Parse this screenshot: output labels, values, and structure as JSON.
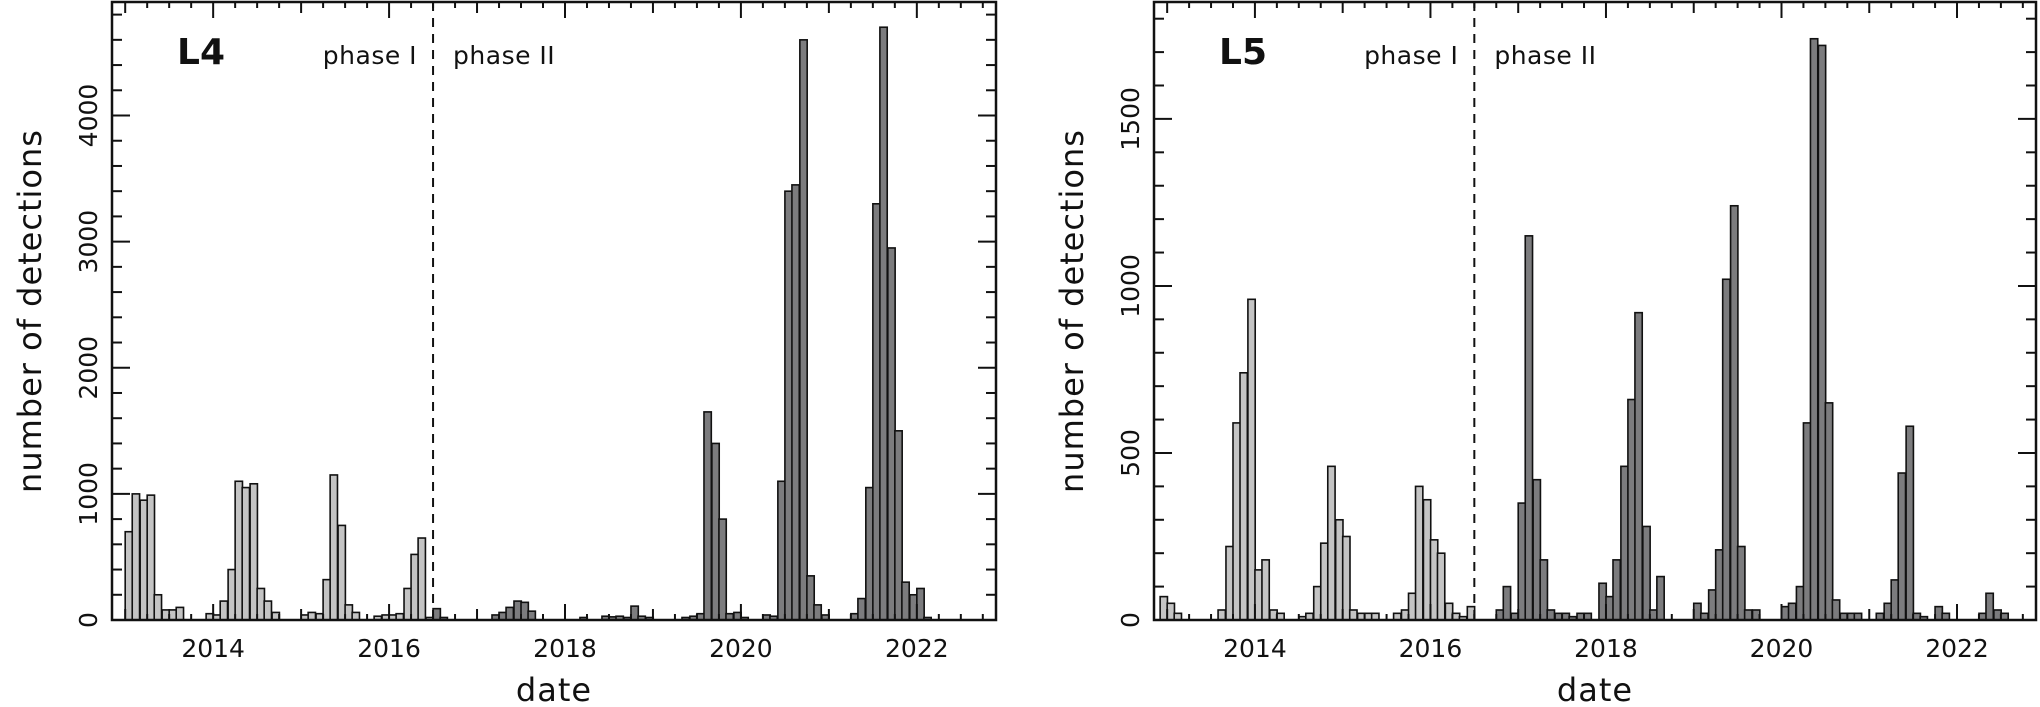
{
  "colors": {
    "phase_I": "#c4c4c4",
    "phase_II": "#7c7c7e",
    "outline": "#111111"
  },
  "chart_data": [
    {
      "type": "bar",
      "panel_label": "L4",
      "xlabel": "date",
      "ylabel": "number of detections",
      "xlim": [
        2012.85,
        2022.9
      ],
      "ylim": [
        0,
        4900
      ],
      "xticks": [
        2014,
        2016,
        2018,
        2020,
        2022
      ],
      "xtick_labels": [
        "2014",
        "2016",
        "2018",
        "2020",
        "2022"
      ],
      "yticks": [
        0,
        1000,
        2000,
        3000,
        4000
      ],
      "ytick_labels": [
        "0",
        "1000",
        "2000",
        "3000",
        "4000"
      ],
      "bin_width": 0.0833,
      "phase_boundary": 2016.5,
      "phase_labels": [
        "phase I",
        "phase II"
      ],
      "series": [
        {
          "phase": "I",
          "bins": [
            [
              2013.0,
              700
            ],
            [
              2013.08,
              1000
            ],
            [
              2013.17,
              950
            ],
            [
              2013.25,
              990
            ],
            [
              2013.33,
              200
            ],
            [
              2013.42,
              80
            ],
            [
              2013.5,
              80
            ],
            [
              2013.58,
              100
            ],
            [
              2013.92,
              50
            ],
            [
              2014.0,
              40
            ],
            [
              2014.08,
              150
            ],
            [
              2014.17,
              400
            ],
            [
              2014.25,
              1100
            ],
            [
              2014.33,
              1050
            ],
            [
              2014.42,
              1080
            ],
            [
              2014.5,
              250
            ],
            [
              2014.58,
              150
            ],
            [
              2014.67,
              60
            ],
            [
              2015.0,
              40
            ],
            [
              2015.08,
              60
            ],
            [
              2015.17,
              50
            ],
            [
              2015.25,
              320
            ],
            [
              2015.33,
              1150
            ],
            [
              2015.42,
              750
            ],
            [
              2015.5,
              120
            ],
            [
              2015.58,
              60
            ],
            [
              2015.83,
              30
            ],
            [
              2015.92,
              40
            ],
            [
              2016.0,
              40
            ],
            [
              2016.08,
              50
            ],
            [
              2016.17,
              250
            ],
            [
              2016.25,
              520
            ],
            [
              2016.33,
              650
            ],
            [
              2016.42,
              20
            ]
          ]
        },
        {
          "phase": "II",
          "bins": [
            [
              2016.5,
              90
            ],
            [
              2016.58,
              20
            ],
            [
              2017.17,
              40
            ],
            [
              2017.25,
              60
            ],
            [
              2017.33,
              100
            ],
            [
              2017.42,
              150
            ],
            [
              2017.5,
              140
            ],
            [
              2017.58,
              70
            ],
            [
              2018.17,
              20
            ],
            [
              2018.42,
              30
            ],
            [
              2018.5,
              25
            ],
            [
              2018.58,
              30
            ],
            [
              2018.67,
              20
            ],
            [
              2018.75,
              110
            ],
            [
              2018.83,
              30
            ],
            [
              2018.92,
              20
            ],
            [
              2019.33,
              20
            ],
            [
              2019.42,
              30
            ],
            [
              2019.5,
              50
            ],
            [
              2019.58,
              1650
            ],
            [
              2019.67,
              1400
            ],
            [
              2019.75,
              800
            ],
            [
              2019.83,
              50
            ],
            [
              2019.92,
              60
            ],
            [
              2020.0,
              20
            ],
            [
              2020.25,
              40
            ],
            [
              2020.33,
              30
            ],
            [
              2020.42,
              1100
            ],
            [
              2020.5,
              3400
            ],
            [
              2020.58,
              3450
            ],
            [
              2020.67,
              4600
            ],
            [
              2020.75,
              350
            ],
            [
              2020.83,
              120
            ],
            [
              2020.92,
              40
            ],
            [
              2021.25,
              50
            ],
            [
              2021.33,
              170
            ],
            [
              2021.42,
              1050
            ],
            [
              2021.5,
              3300
            ],
            [
              2021.58,
              4700
            ],
            [
              2021.67,
              2950
            ],
            [
              2021.75,
              1500
            ],
            [
              2021.83,
              300
            ],
            [
              2021.92,
              200
            ],
            [
              2022.0,
              250
            ],
            [
              2022.08,
              20
            ]
          ]
        }
      ]
    },
    {
      "type": "bar",
      "panel_label": "L5",
      "xlabel": "date",
      "ylabel": "number of detections",
      "xlim": [
        2012.85,
        2022.9
      ],
      "ylim": [
        0,
        1850
      ],
      "xticks": [
        2014,
        2016,
        2018,
        2020,
        2022
      ],
      "xtick_labels": [
        "2014",
        "2016",
        "2018",
        "2020",
        "2022"
      ],
      "yticks": [
        0,
        500,
        1000,
        1500
      ],
      "ytick_labels": [
        "0",
        "500",
        "1000",
        "1500"
      ],
      "bin_width": 0.0833,
      "phase_boundary": 2016.5,
      "phase_labels": [
        "phase I",
        "phase II"
      ],
      "series": [
        {
          "phase": "I",
          "bins": [
            [
              2012.92,
              70
            ],
            [
              2013.0,
              50
            ],
            [
              2013.08,
              20
            ],
            [
              2013.58,
              30
            ],
            [
              2013.67,
              220
            ],
            [
              2013.75,
              590
            ],
            [
              2013.83,
              740
            ],
            [
              2013.92,
              960
            ],
            [
              2014.0,
              150
            ],
            [
              2014.08,
              180
            ],
            [
              2014.17,
              30
            ],
            [
              2014.25,
              20
            ],
            [
              2014.5,
              10
            ],
            [
              2014.58,
              20
            ],
            [
              2014.67,
              100
            ],
            [
              2014.75,
              230
            ],
            [
              2014.83,
              460
            ],
            [
              2014.92,
              300
            ],
            [
              2015.0,
              250
            ],
            [
              2015.08,
              30
            ],
            [
              2015.17,
              20
            ],
            [
              2015.25,
              20
            ],
            [
              2015.33,
              20
            ],
            [
              2015.58,
              20
            ],
            [
              2015.67,
              30
            ],
            [
              2015.75,
              80
            ],
            [
              2015.83,
              400
            ],
            [
              2015.92,
              360
            ],
            [
              2016.0,
              240
            ],
            [
              2016.08,
              200
            ],
            [
              2016.17,
              50
            ],
            [
              2016.25,
              20
            ],
            [
              2016.33,
              10
            ],
            [
              2016.42,
              40
            ]
          ]
        },
        {
          "phase": "II",
          "bins": [
            [
              2016.75,
              30
            ],
            [
              2016.83,
              100
            ],
            [
              2016.92,
              20
            ],
            [
              2017.0,
              350
            ],
            [
              2017.08,
              1150
            ],
            [
              2017.17,
              420
            ],
            [
              2017.25,
              180
            ],
            [
              2017.33,
              30
            ],
            [
              2017.42,
              20
            ],
            [
              2017.5,
              20
            ],
            [
              2017.58,
              10
            ],
            [
              2017.67,
              20
            ],
            [
              2017.75,
              20
            ],
            [
              2017.92,
              110
            ],
            [
              2018.0,
              70
            ],
            [
              2018.08,
              180
            ],
            [
              2018.17,
              460
            ],
            [
              2018.25,
              660
            ],
            [
              2018.33,
              920
            ],
            [
              2018.42,
              280
            ],
            [
              2018.5,
              30
            ],
            [
              2018.58,
              130
            ],
            [
              2019.0,
              50
            ],
            [
              2019.08,
              20
            ],
            [
              2019.17,
              90
            ],
            [
              2019.25,
              210
            ],
            [
              2019.33,
              1020
            ],
            [
              2019.42,
              1240
            ],
            [
              2019.5,
              220
            ],
            [
              2019.58,
              30
            ],
            [
              2019.67,
              30
            ],
            [
              2020.0,
              40
            ],
            [
              2020.08,
              50
            ],
            [
              2020.17,
              100
            ],
            [
              2020.25,
              590
            ],
            [
              2020.33,
              1740
            ],
            [
              2020.42,
              1720
            ],
            [
              2020.5,
              650
            ],
            [
              2020.58,
              60
            ],
            [
              2020.67,
              20
            ],
            [
              2020.75,
              20
            ],
            [
              2020.83,
              20
            ],
            [
              2021.08,
              20
            ],
            [
              2021.17,
              50
            ],
            [
              2021.25,
              120
            ],
            [
              2021.33,
              440
            ],
            [
              2021.42,
              580
            ],
            [
              2021.5,
              20
            ],
            [
              2021.58,
              10
            ],
            [
              2021.75,
              40
            ],
            [
              2021.83,
              20
            ],
            [
              2022.25,
              20
            ],
            [
              2022.33,
              80
            ],
            [
              2022.42,
              30
            ],
            [
              2022.5,
              20
            ]
          ]
        }
      ]
    }
  ]
}
